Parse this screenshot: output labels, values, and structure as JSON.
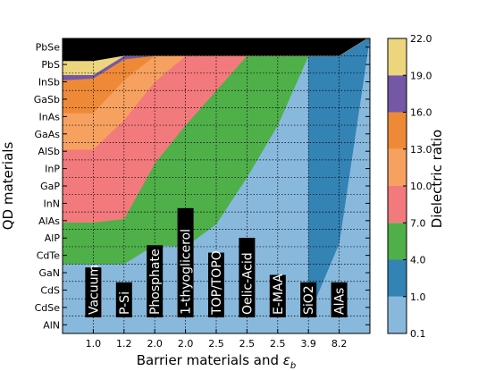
{
  "chart_data": {
    "type": "heatmap",
    "xlabel": "Barrier materials and ",
    "xlabel_symbol": "ε",
    "xlabel_subscript": "b",
    "ylabel": "QD materials",
    "x_tick_labels": [
      "1.0",
      "1.2",
      "2.0",
      "2.0",
      "2.5",
      "2.5",
      "2.5",
      "3.9",
      "8.2"
    ],
    "barrier_materials": [
      "Vacuum",
      "P-Si",
      "Phosphate",
      "1-thyoglicerol",
      "TOP/TOPO",
      "Oelic-Acid",
      "E-MAA",
      "SiO2",
      "AlAs"
    ],
    "y_tick_labels": [
      "AlN",
      "CdSe",
      "CdS",
      "GaN",
      "CdTe",
      "AlP",
      "AlAs",
      "InN",
      "GaP",
      "InP",
      "AlSb",
      "GaAs",
      "InAs",
      "GaSb",
      "InSb",
      "PbS",
      "PbSe"
    ],
    "colorbar": {
      "label": "Dielectric ratio",
      "tick_labels": [
        "0.1",
        "1.0",
        "4.0",
        "7.0",
        "10.0",
        "13.0",
        "16.0",
        "19.0",
        "22.0"
      ],
      "colors": [
        "#88b9dc",
        "#3383b5",
        "#4fb04a",
        "#f27a7d",
        "#f6a160",
        "#ee8a37",
        "#7458a6",
        "#ecd57d"
      ]
    },
    "grid": true,
    "boundaries": [
      {
        "between": [
          "0.1",
          "1.0"
        ],
        "y_at_x": [
          null,
          null,
          null,
          null,
          null,
          null,
          null,
          null,
          1.0,
          5.2
        ]
      },
      {
        "between": [
          "1.0",
          "4.0"
        ],
        "y_at_x": [
          4.0,
          4.0,
          4.0,
          5.1,
          5.0,
          6.3,
          9.0,
          12.0,
          16.0,
          16.0
        ]
      },
      {
        "between": [
          "4.0",
          "7.0"
        ],
        "y_at_x": [
          6.4,
          6.4,
          6.6,
          9.8,
          12.0,
          14.0,
          16.0,
          16.0,
          16.0,
          16.0
        ]
      },
      {
        "between": [
          "7.0",
          "10.0"
        ],
        "y_at_x": [
          10.6,
          10.6,
          12.3,
          14.5,
          16.0,
          16.0,
          16.0,
          16.0,
          16.0,
          16.0
        ]
      },
      {
        "between": [
          "10.0",
          "13.0"
        ],
        "y_at_x": [
          12.7,
          12.7,
          14.6,
          16.0,
          16.0,
          16.0,
          16.0,
          16.0,
          16.0,
          16.0
        ]
      },
      {
        "between": [
          "13.0",
          "16.0"
        ],
        "y_at_x": [
          14.6,
          14.7,
          15.8,
          16.0,
          16.0,
          16.0,
          16.0,
          16.0,
          16.0,
          16.0
        ]
      },
      {
        "between": [
          "16.0",
          "19.0"
        ],
        "y_at_x": [
          14.9,
          14.9,
          16.0,
          16.0,
          16.0,
          16.0,
          16.0,
          16.0,
          16.0,
          16.0
        ]
      },
      {
        "between": [
          "19.0",
          "22.0"
        ],
        "y_at_x": [
          15.7,
          15.7,
          16.0,
          16.0,
          16.0,
          16.0,
          16.0,
          16.0,
          16.0,
          16.0
        ]
      }
    ]
  }
}
